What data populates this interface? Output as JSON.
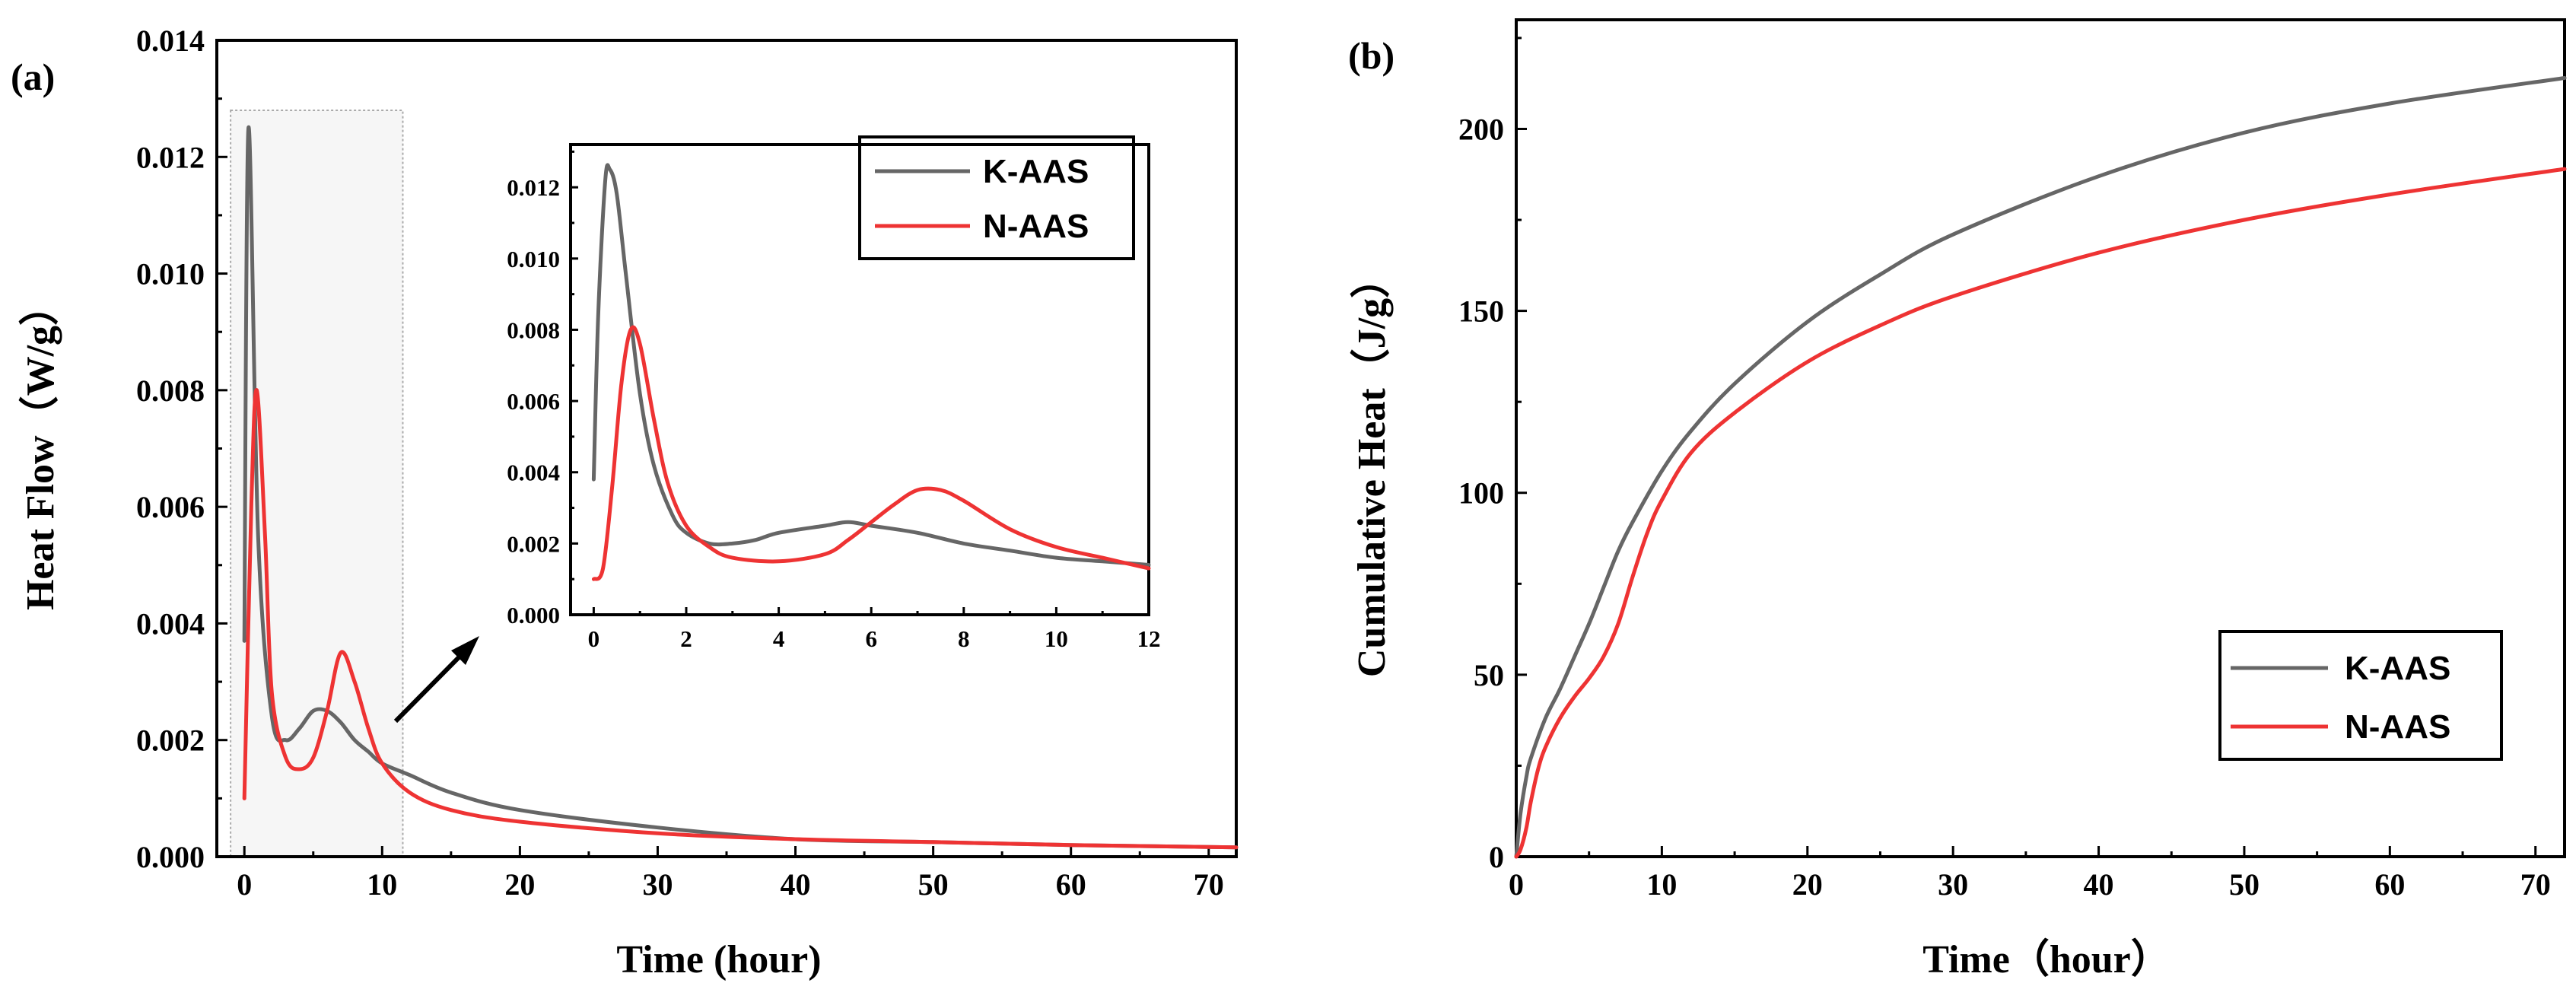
{
  "chart_data": [
    {
      "type": "line",
      "panel_label": "(a)",
      "xlabel": "Time (hour)",
      "ylabel": "Heat Flow（W/g）",
      "xlim": [
        -2,
        72
      ],
      "ylim": [
        0,
        0.014
      ],
      "x_ticks": [
        "0",
        "10",
        "20",
        "30",
        "40",
        "50",
        "60",
        "70"
      ],
      "y_ticks": [
        "0.000",
        "0.002",
        "0.004",
        "0.006",
        "0.008",
        "0.010",
        "0.012",
        "0.014"
      ],
      "colors": {
        "K-AAS": "#666666",
        "N-AAS": "#ee3333",
        "highlight": "#c8c8c8"
      },
      "highlight_x_range": [
        -1,
        11.5
      ],
      "highlight_y_top": 0.0128,
      "series": [
        {
          "name": "K-AAS",
          "x": [
            0,
            0.3,
            1,
            2,
            3,
            4,
            5,
            6,
            7,
            8,
            9,
            10,
            12,
            15,
            20,
            30,
            40,
            50,
            60,
            72
          ],
          "y": [
            0.0037,
            0.0125,
            0.0055,
            0.0024,
            0.002,
            0.0022,
            0.0025,
            0.0025,
            0.0023,
            0.002,
            0.0018,
            0.0016,
            0.0014,
            0.0011,
            0.0008,
            0.0005,
            0.0003,
            0.00025,
            0.0002,
            0.00016
          ]
        },
        {
          "name": "N-AAS",
          "x": [
            0,
            0.5,
            0.9,
            1.5,
            2,
            3,
            4,
            5,
            6,
            7,
            8,
            9,
            10,
            12,
            15,
            20,
            30,
            40,
            50,
            60,
            72
          ],
          "y": [
            0.001,
            0.006,
            0.008,
            0.0055,
            0.0028,
            0.0017,
            0.0015,
            0.0017,
            0.0025,
            0.0035,
            0.003,
            0.0022,
            0.0016,
            0.0011,
            0.0008,
            0.0006,
            0.0004,
            0.0003,
            0.00025,
            0.0002,
            0.00016
          ]
        }
      ],
      "legend": [
        "K-AAS",
        "N-AAS"
      ],
      "legend_position": "top-right"
    },
    {
      "type": "line",
      "role": "inset",
      "xlim": [
        -0.5,
        12
      ],
      "ylim": [
        0,
        0.0132
      ],
      "x_ticks": [
        "0",
        "2",
        "4",
        "6",
        "8",
        "10",
        "12"
      ],
      "y_ticks": [
        "0.000",
        "0.002",
        "0.004",
        "0.006",
        "0.008",
        "0.010",
        "0.012"
      ],
      "series": [
        {
          "name": "K-AAS",
          "x": [
            0,
            0.1,
            0.25,
            0.35,
            0.5,
            0.7,
            1,
            1.3,
            1.7,
            2,
            2.5,
            3,
            3.5,
            4,
            5,
            5.5,
            6,
            7,
            8,
            9,
            10,
            11,
            12
          ],
          "y": [
            0.0038,
            0.0085,
            0.0122,
            0.0125,
            0.0118,
            0.0095,
            0.0062,
            0.0042,
            0.0028,
            0.0023,
            0.002,
            0.002,
            0.0021,
            0.0023,
            0.0025,
            0.0026,
            0.0025,
            0.0023,
            0.002,
            0.0018,
            0.0016,
            0.0015,
            0.0014
          ]
        },
        {
          "name": "N-AAS",
          "x": [
            0,
            0.2,
            0.4,
            0.6,
            0.8,
            1,
            1.3,
            1.6,
            2,
            2.5,
            3,
            4,
            5,
            5.5,
            6,
            6.5,
            7,
            7.5,
            8,
            9,
            10,
            11,
            12
          ],
          "y": [
            0.001,
            0.0013,
            0.0036,
            0.0065,
            0.008,
            0.0076,
            0.0055,
            0.0037,
            0.0025,
            0.0019,
            0.0016,
            0.0015,
            0.0017,
            0.0021,
            0.0026,
            0.0031,
            0.0035,
            0.0035,
            0.0032,
            0.0024,
            0.0019,
            0.0016,
            0.0013
          ]
        }
      ]
    },
    {
      "type": "line",
      "panel_label": "(b)",
      "xlabel": "Time（hour）",
      "ylabel": "Cumulative Heat（J/g）",
      "xlim": [
        0,
        72
      ],
      "ylim": [
        0,
        230
      ],
      "x_ticks": [
        "0",
        "10",
        "20",
        "30",
        "40",
        "50",
        "60",
        "70"
      ],
      "y_ticks": [
        "0",
        "50",
        "100",
        "150",
        "200"
      ],
      "series": [
        {
          "name": "K-AAS",
          "x": [
            0,
            0.3,
            0.7,
            1,
            2,
            3,
            4,
            5,
            6,
            7,
            8,
            10,
            12,
            15,
            20,
            25,
            30,
            40,
            50,
            60,
            72
          ],
          "y": [
            0,
            12,
            22,
            27,
            38,
            46,
            55,
            64,
            74,
            84,
            92,
            106,
            117,
            130,
            147,
            160,
            171,
            187,
            199,
            207,
            214
          ]
        },
        {
          "name": "N-AAS",
          "x": [
            0,
            0.3,
            0.7,
            1,
            1.5,
            2,
            3,
            4,
            5,
            6,
            7,
            8,
            9,
            10,
            12,
            15,
            20,
            25,
            30,
            40,
            50,
            60,
            72
          ],
          "y": [
            0,
            2,
            8,
            15,
            24,
            30,
            38,
            44,
            49,
            55,
            64,
            77,
            89,
            98,
            111,
            122,
            136,
            146,
            154,
            166,
            175,
            182,
            189
          ]
        }
      ],
      "legend": [
        "K-AAS",
        "N-AAS"
      ],
      "legend_position": "lower-right"
    }
  ]
}
